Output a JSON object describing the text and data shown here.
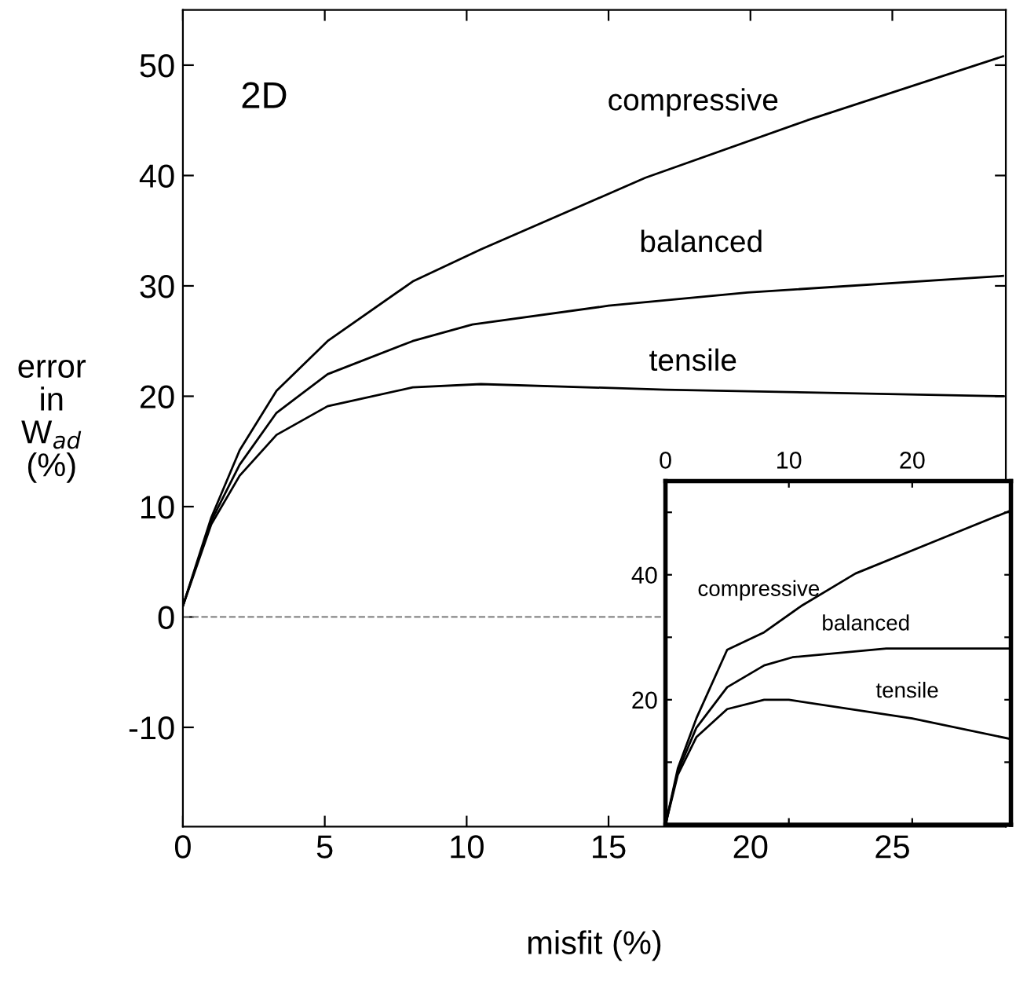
{
  "chart_data": [
    {
      "type": "line",
      "xlabel": "misfit (%)",
      "ylabel": "error\nin\nW$_{ad}$\n(%)",
      "annotations": [
        "2D"
      ],
      "xlim": [
        0,
        29
      ],
      "ylim": [
        -19,
        55
      ],
      "xticks": [
        0,
        5,
        10,
        15,
        20,
        25
      ],
      "yticks": [
        -10,
        0,
        10,
        20,
        30,
        40,
        50
      ],
      "grid": false,
      "legend": false,
      "marker": "none",
      "line_style": "solid",
      "ref_lines": [
        {
          "axis": "y",
          "value": 0,
          "label": null,
          "color": "#888888",
          "line_style": "dashed"
        }
      ],
      "series": [
        {
          "name": "compressive",
          "color": "#000000",
          "x": [
            0,
            1,
            2,
            3.3,
            5.1,
            8.1,
            10.5,
            16.3,
            22,
            28.9
          ],
          "values": [
            1,
            9,
            15.1,
            20.5,
            25,
            30.4,
            33.3,
            39.8,
            45,
            50.8
          ]
        },
        {
          "name": "balanced",
          "color": "#000000",
          "x": [
            0,
            1,
            2,
            3.3,
            5.1,
            8.1,
            10.2,
            15,
            19.9,
            28.9
          ],
          "values": [
            1,
            8.7,
            13.8,
            18.5,
            22,
            25,
            26.5,
            28.2,
            29.4,
            30.9
          ]
        },
        {
          "name": "tensile",
          "color": "#000000",
          "x": [
            0,
            1,
            2,
            3.3,
            5.1,
            8.1,
            10.5,
            17,
            28.9
          ],
          "values": [
            1,
            8.4,
            12.8,
            16.5,
            19.1,
            20.8,
            21.1,
            20.6,
            20.0
          ]
        }
      ]
    },
    {
      "type": "line",
      "xlim": [
        0,
        28
      ],
      "ylim": [
        0,
        55
      ],
      "xticks": [
        0,
        10,
        20
      ],
      "yticks": [
        {
          "value": 10,
          "label": null
        },
        20,
        {
          "value": 30,
          "label": null
        },
        40,
        {
          "value": 50,
          "label": null
        }
      ],
      "grid": false,
      "legend": false,
      "marker": "none",
      "line_style": "solid",
      "series": [
        {
          "name": "compressive",
          "color": "#000000",
          "x": [
            0,
            1,
            2.5,
            5,
            8,
            11,
            15.4,
            22,
            28
          ],
          "values": [
            0,
            9,
            17,
            28,
            30.8,
            35,
            40.2,
            45.5,
            50.3
          ]
        },
        {
          "name": "balanced",
          "color": "#000000",
          "x": [
            0,
            1,
            2.5,
            5,
            8,
            10.3,
            17.9,
            28
          ],
          "values": [
            0,
            8.5,
            15.5,
            22,
            25.5,
            26.8,
            28.2,
            28.2
          ]
        },
        {
          "name": "tensile",
          "color": "#000000",
          "x": [
            0,
            1,
            2.5,
            5,
            8,
            10,
            20,
            28
          ],
          "values": [
            0,
            8,
            14,
            18.5,
            20,
            20,
            17,
            13.7
          ]
        }
      ]
    }
  ]
}
